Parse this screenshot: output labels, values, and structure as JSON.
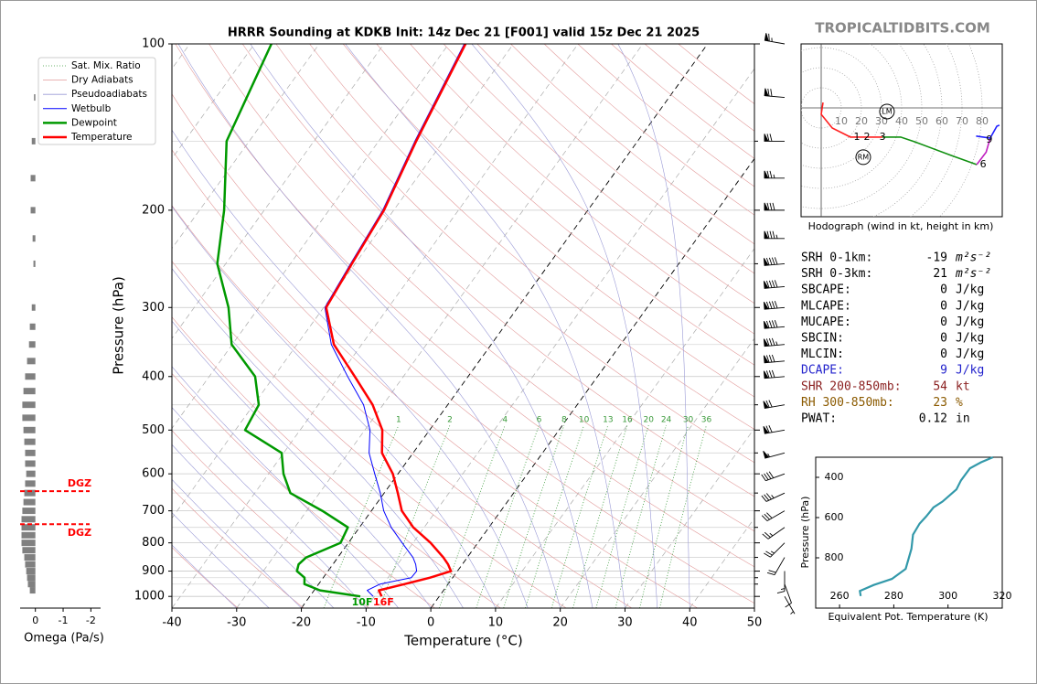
{
  "watermark": "TROPICALTIDBITS.COM",
  "chart_data": [
    {
      "type": "skewt",
      "title": "HRRR Sounding at KDKB Init: 14z Dec 21 [F001] valid 15z Dec 21 2025",
      "x_label": "Temperature (°C)",
      "y_label": "Pressure (hPa)",
      "xlim": [
        -40,
        50
      ],
      "xticks": [
        -40,
        -30,
        -20,
        -10,
        0,
        10,
        20,
        30,
        40,
        50
      ],
      "ylim": [
        1050,
        100
      ],
      "yticks": [
        100,
        200,
        300,
        400,
        500,
        600,
        700,
        800,
        900,
        1000
      ],
      "minor_yticks": [
        150,
        250,
        350,
        450,
        550,
        650,
        750,
        850,
        925,
        950
      ],
      "log_y": true,
      "grid": true,
      "highlight_isotherms": [
        -20,
        0
      ],
      "pressure": [
        1000,
        975,
        950,
        925,
        900,
        875,
        850,
        800,
        750,
        700,
        650,
        600,
        550,
        500,
        450,
        400,
        350,
        300,
        250,
        200,
        150,
        100
      ],
      "reference_lines": [
        {
          "name": "Sat. Mix. Ratio",
          "color": "#3a9a3a",
          "style": "dotted"
        },
        {
          "name": "Dry Adiabats",
          "color": "#e29a9a",
          "style": "solid"
        },
        {
          "name": "Pseudoadiabats",
          "color": "#9a9ad6",
          "style": "solid"
        }
      ],
      "series": [
        {
          "name": "Wetbulb",
          "color": "#0000ff",
          "linewidth": 1,
          "values": [
            -10.2,
            -11.8,
            -10.5,
            -6.4,
            -6.3,
            -7.2,
            -8.4,
            -11.7,
            -15.1,
            -18.1,
            -20.6,
            -23.6,
            -26.8,
            -29.2,
            -33.0,
            -38.6,
            -44.7,
            -49.8,
            -50.7,
            -51.7,
            -54.4,
            -57.6
          ]
        },
        {
          "name": "Dewpoint",
          "color": "#009900",
          "linewidth": 2.5,
          "values": [
            -12.2,
            -19.1,
            -22.2,
            -22.9,
            -24.8,
            -25.3,
            -24.9,
            -21.2,
            -21.8,
            -27.6,
            -34.5,
            -37.7,
            -40.3,
            -48.5,
            -49.2,
            -52.9,
            -60.1,
            -64.7,
            -71.3,
            -76.2,
            -83.5,
            -87.4
          ]
        },
        {
          "name": "Temperature",
          "color": "#ff0000",
          "linewidth": 2.5,
          "values": [
            -8.9,
            -10.0,
            -6.7,
            -3.5,
            -1.0,
            -2.2,
            -3.7,
            -7.3,
            -11.7,
            -15.3,
            -17.9,
            -20.8,
            -24.8,
            -27.3,
            -31.6,
            -37.5,
            -44.3,
            -49.6,
            -50.5,
            -51.5,
            -54.2,
            -57.4
          ]
        }
      ],
      "mixing_ratios": [
        1,
        2,
        4,
        6,
        8,
        10,
        13,
        16,
        20,
        24,
        30,
        36
      ],
      "surface_labels": [
        "10F",
        "16F"
      ],
      "wind": {
        "pressure": [
          100,
          125,
          150,
          175,
          200,
          225,
          250,
          275,
          300,
          325,
          350,
          375,
          400,
          450,
          500,
          550,
          600,
          650,
          700,
          750,
          800,
          850,
          900,
          950,
          1000
        ],
        "direction": [
          280,
          275,
          270,
          270,
          270,
          270,
          265,
          265,
          265,
          265,
          265,
          265,
          265,
          260,
          260,
          255,
          250,
          245,
          240,
          235,
          225,
          210,
          180,
          160,
          150
        ],
        "speed": [
          65,
          70,
          70,
          75,
          80,
          85,
          90,
          90,
          90,
          90,
          85,
          80,
          80,
          70,
          70,
          55,
          40,
          35,
          30,
          25,
          25,
          20,
          15,
          10,
          5
        ]
      }
    },
    {
      "type": "hodograph",
      "caption": "Hodograph (wind in kt, height in km)",
      "rings": [
        10,
        20,
        30,
        40,
        50,
        60,
        70,
        80
      ],
      "segments": [
        {
          "color": "#ff2020",
          "u": [
            0.9,
            0,
            5.5,
            14.5,
            22.7,
            30.5
          ],
          "v": [
            2.7,
            -3.2,
            -10,
            -14.5,
            -14.5,
            -14.5
          ]
        },
        {
          "color": "#109010",
          "u": [
            30.5,
            39.5,
            46.4,
            64.5,
            77.3
          ],
          "v": [
            -14.5,
            -14.5,
            -16.8,
            -23.6,
            -28.2
          ]
        },
        {
          "color": "#c020c0",
          "u": [
            77.3,
            82,
            84
          ],
          "v": [
            -28.2,
            -22,
            -15
          ]
        },
        {
          "color": "#2020ff",
          "u": [
            77,
            84,
            87.3,
            88.6
          ],
          "v": [
            -14,
            -15,
            -9.1,
            -8.6
          ]
        }
      ],
      "height_labels": [
        {
          "label": 1,
          "u": 17.7,
          "v": -14.5
        },
        {
          "label": 2,
          "u": 22.7,
          "v": -14.5
        },
        {
          "label": 3,
          "u": 30.5,
          "v": -14.5
        },
        {
          "label": 6,
          "u": 80.5,
          "v": -28.2
        },
        {
          "label": 9,
          "u": 83.6,
          "v": -15.9
        }
      ],
      "storm_motion": [
        {
          "label": "LM",
          "u": 32.7,
          "v": -1.8
        },
        {
          "label": "RM",
          "u": 20.9,
          "v": -24.5
        }
      ]
    },
    {
      "type": "omega",
      "x_label": "Omega (Pa/s)",
      "xlim": [
        0.55,
        -2.35
      ],
      "xticks": [
        0,
        -1,
        -2
      ],
      "color": "#808080",
      "pressure": [
        125,
        150,
        175,
        200,
        225,
        250,
        300,
        325,
        350,
        375,
        400,
        425,
        450,
        475,
        500,
        525,
        550,
        575,
        600,
        625,
        650,
        675,
        700,
        725,
        750,
        775,
        800,
        825,
        850,
        875,
        900,
        925,
        950,
        975
      ],
      "values": [
        0.05,
        0.13,
        0.17,
        0.17,
        0.1,
        0.07,
        0.13,
        0.2,
        0.23,
        0.3,
        0.37,
        0.43,
        0.47,
        0.47,
        0.43,
        0.4,
        0.37,
        0.37,
        0.33,
        0.37,
        0.4,
        0.43,
        0.47,
        0.5,
        0.5,
        0.5,
        0.5,
        0.47,
        0.4,
        0.37,
        0.33,
        0.3,
        0.27,
        0.2
      ],
      "dgz_labels": [
        "DGZ",
        "DGZ"
      ],
      "dgz_pressures": [
        645,
        740
      ],
      "dgz_color": "#ff0000"
    },
    {
      "type": "theta_e",
      "x_label": "Equivalent Pot. Temperature (K)",
      "y_label": "Pressure (hPa)",
      "xlim": [
        251.2,
        320
      ],
      "xticks": [
        260,
        280,
        300,
        320
      ],
      "ylim": [
        1050,
        300
      ],
      "yticks": [
        400,
        600,
        800
      ],
      "color": "#3399aa",
      "y": [
        990,
        965,
        935,
        905,
        855,
        755,
        685,
        630,
        595,
        550,
        520,
        460,
        415,
        355,
        325,
        300
      ],
      "values": [
        267.8,
        267.5,
        272.6,
        279.3,
        284.4,
        286.5,
        287.1,
        289.5,
        291.9,
        294.6,
        298.0,
        303.1,
        304.8,
        308.1,
        312.2,
        316.6
      ]
    }
  ],
  "indices": [
    {
      "label": "SRH 0-1km:",
      "value": -19,
      "unit": "m²s⁻²",
      "color": "#000000"
    },
    {
      "label": "SRH 0-3km:",
      "value": 21,
      "unit": "m²s⁻²",
      "color": "#000000"
    },
    {
      "label": "SBCAPE:",
      "value": 0,
      "unit": "J/kg",
      "color": "#000000"
    },
    {
      "label": "MLCAPE:",
      "value": 0,
      "unit": "J/kg",
      "color": "#000000"
    },
    {
      "label": "MUCAPE:",
      "value": 0,
      "unit": "J/kg",
      "color": "#000000"
    },
    {
      "label": "SBCIN:",
      "value": 0,
      "unit": "J/kg",
      "color": "#000000"
    },
    {
      "label": "MLCIN:",
      "value": 0,
      "unit": "J/kg",
      "color": "#000000"
    },
    {
      "label": "DCAPE:",
      "value": 9,
      "unit": "J/kg",
      "color": "#2222cc"
    },
    {
      "label": "SHR 200-850mb:",
      "value": 54,
      "unit": "kt",
      "color": "#8b2020"
    },
    {
      "label": "RH 300-850mb:",
      "value": 23,
      "unit": "%",
      "color": "#8b5a00"
    },
    {
      "label": "PWAT:",
      "value": 0.12,
      "unit": "in",
      "color": "#000000"
    }
  ]
}
